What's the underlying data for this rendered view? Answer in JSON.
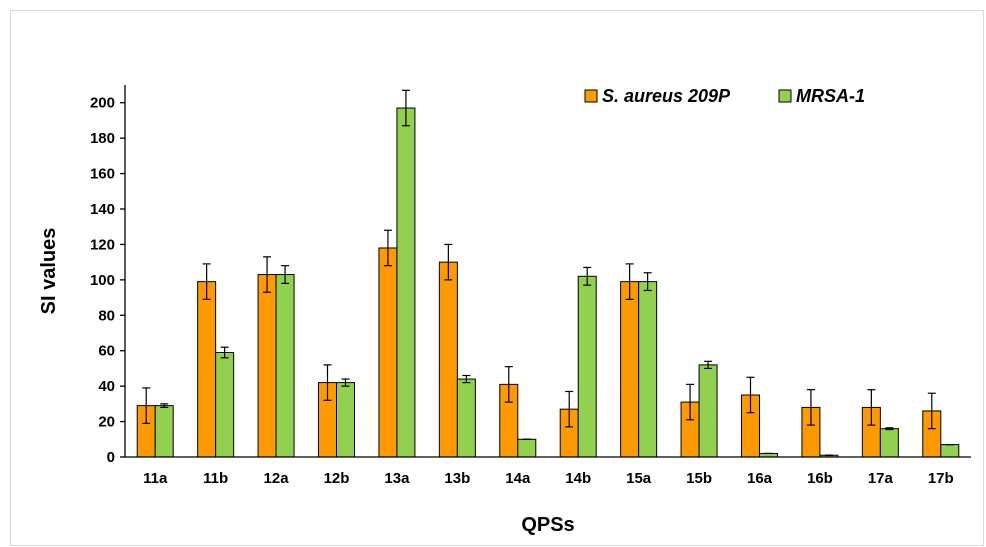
{
  "chart_data": {
    "type": "bar",
    "xlabel": "QPSs",
    "ylabel": "SI values",
    "ylim": [
      0,
      210
    ],
    "yticks": [
      0,
      20,
      40,
      60,
      80,
      100,
      120,
      140,
      160,
      180,
      200
    ],
    "grid": false,
    "legend_position": "top-right",
    "categories": [
      "11a",
      "11b",
      "12a",
      "12b",
      "13a",
      "13b",
      "14a",
      "14b",
      "15a",
      "15b",
      "16a",
      "16b",
      "17a",
      "17b"
    ],
    "series": [
      {
        "name": "S. aureus 209P",
        "color": "#ff9900",
        "values": [
          29,
          99,
          103,
          42,
          118,
          110,
          41,
          27,
          99,
          31,
          35,
          28,
          28,
          26
        ],
        "errors": [
          10,
          10,
          10,
          10,
          10,
          10,
          10,
          10,
          10,
          10,
          10,
          10,
          10,
          10
        ]
      },
      {
        "name": "MRSA-1",
        "color": "#92d050",
        "values": [
          29,
          59,
          103,
          42,
          197,
          44,
          10,
          102,
          99,
          52,
          2,
          1,
          16,
          7
        ],
        "errors": [
          1,
          3,
          5,
          2,
          10,
          2,
          0,
          5,
          5,
          2,
          0,
          0,
          0.5,
          0
        ]
      }
    ]
  }
}
